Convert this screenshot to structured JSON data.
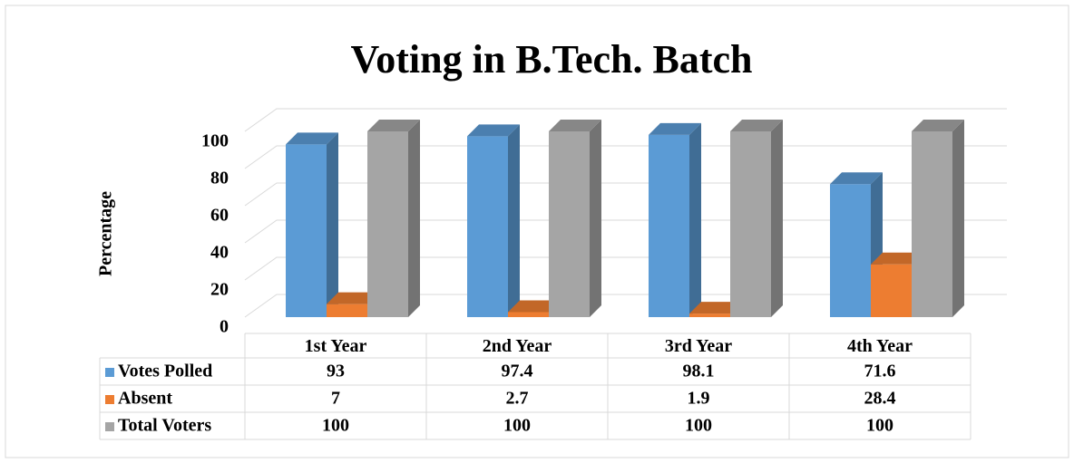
{
  "chart_data": {
    "type": "bar",
    "title": "Voting in B.Tech. Batch",
    "y_label": "Percentage",
    "categories": [
      "1st Year",
      "2nd Year",
      "3rd Year",
      "4th Year"
    ],
    "series": [
      {
        "name": "Votes Polled",
        "color": "#5b9bd5",
        "values": [
          93,
          97.4,
          98.1,
          71.6
        ]
      },
      {
        "name": "Absent",
        "color": "#ed7d31",
        "values": [
          7,
          2.7,
          1.9,
          28.4
        ]
      },
      {
        "name": "Total Voters",
        "color": "#a5a5a5",
        "values": [
          100,
          100,
          100,
          100
        ]
      }
    ],
    "ylim": [
      0,
      100
    ],
    "yticks": [
      0,
      20,
      40,
      60,
      80,
      100
    ],
    "grid": true,
    "data_table": true
  }
}
